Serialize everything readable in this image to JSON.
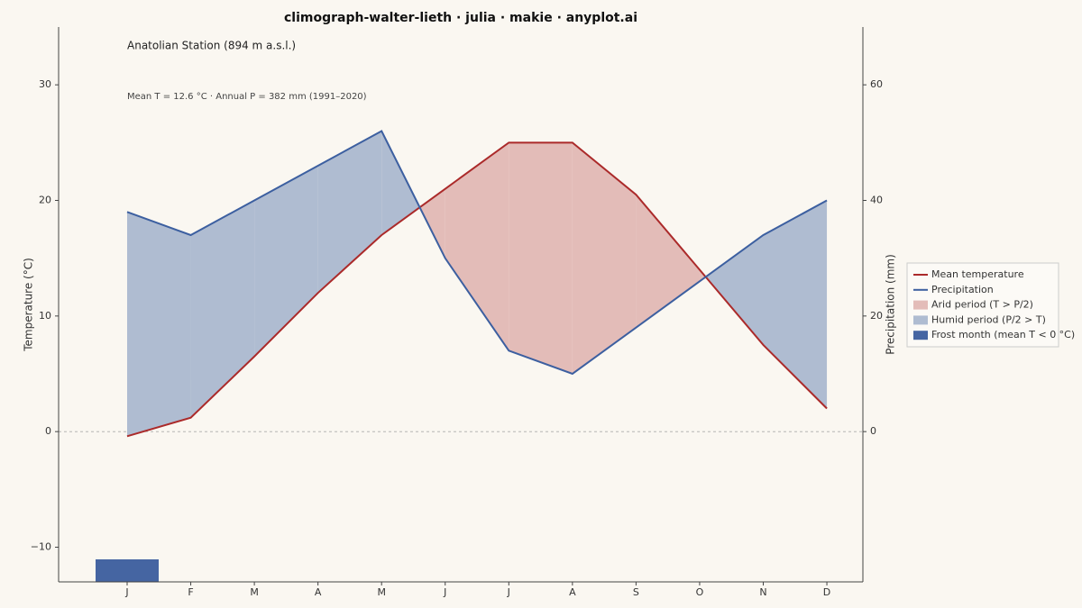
{
  "chart_data": {
    "type": "climograph",
    "title": "climograph-walter-lieth · julia · makie · anyplot.ai",
    "subtitle": "Anatolian Station  (894 m a.s.l.)",
    "annotation": "Mean T = 12.6 °C  ·  Annual P = 382 mm  (1991–2020)",
    "ylabel": "Temperature (°C)",
    "y2label": "Precipitation (mm)",
    "categories": [
      "J",
      "F",
      "M",
      "A",
      "M",
      "J",
      "J",
      "A",
      "S",
      "O",
      "N",
      "D"
    ],
    "series": [
      {
        "name": "Mean temperature",
        "color": "#ab2a2a",
        "axis": "y",
        "values": [
          -0.4,
          1.2,
          6.5,
          12,
          17,
          21,
          25,
          25,
          20.5,
          14,
          7.5,
          2
        ]
      },
      {
        "name": "Precipitation",
        "color": "#3c5fa0",
        "axis": "y2",
        "values": [
          38,
          34,
          40,
          46,
          52,
          30,
          14,
          10,
          18,
          26,
          34,
          40
        ]
      }
    ],
    "areas": [
      {
        "name": "Arid period (T > P/2)",
        "color": "#e3bcb8"
      },
      {
        "name": "Humid period (P/2 > T)",
        "color": "#afbcd1"
      },
      {
        "name": "Frost month (mean T < 0 °C)",
        "color": "#4565a2"
      }
    ],
    "ylim": [
      -13,
      35
    ],
    "yticks": [
      {
        "value": -10,
        "label": "−10"
      },
      0,
      10,
      20,
      30
    ],
    "y2lim": [
      -26,
      70
    ],
    "y2ticks": [
      0,
      20,
      40,
      60
    ],
    "legend": "right"
  }
}
